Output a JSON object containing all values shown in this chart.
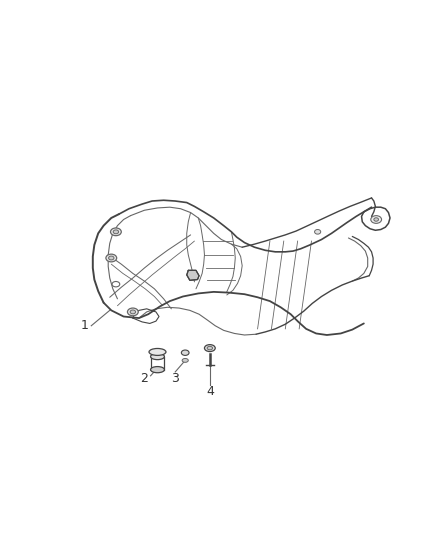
{
  "bg_color": "#ffffff",
  "line_color": "#999999",
  "dark_line_color": "#444444",
  "med_line_color": "#666666",
  "label_color": "#333333",
  "fig_width": 4.38,
  "fig_height": 5.33,
  "dpi": 100,
  "label_fontsize": 9
}
